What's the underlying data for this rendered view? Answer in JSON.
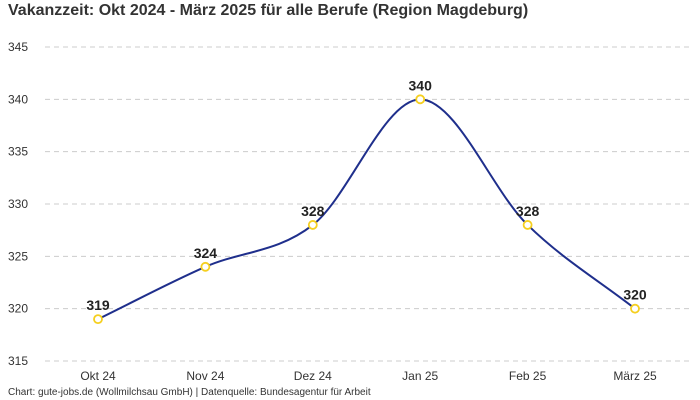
{
  "chart_data": {
    "type": "line",
    "title": "Vakanzzeit: Okt 2024 - März 2025 für alle Berufe (Region Magdeburg)",
    "categories": [
      "Okt 24",
      "Nov 24",
      "Dez 24",
      "Jan 25",
      "Feb 25",
      "März 25"
    ],
    "series": [
      {
        "values": [
          319,
          324,
          328,
          340,
          328,
          320
        ]
      }
    ],
    "data_labels": [
      "319",
      "324",
      "328",
      "340",
      "328",
      "320"
    ],
    "y_ticks": [
      "315",
      "320",
      "325",
      "330",
      "335",
      "340",
      "345"
    ],
    "ylim": [
      315,
      345
    ],
    "grid": true,
    "legend": "none",
    "line_color": "#1f2f8c",
    "marker_fill": "#ffffff",
    "marker_stroke": "#f5cf1f",
    "gridline_color": "#cccccc",
    "source": "Chart: gute-jobs.de (Wollmilchsau GmbH) | Datenquelle: Bundesagentur für Arbeit"
  }
}
